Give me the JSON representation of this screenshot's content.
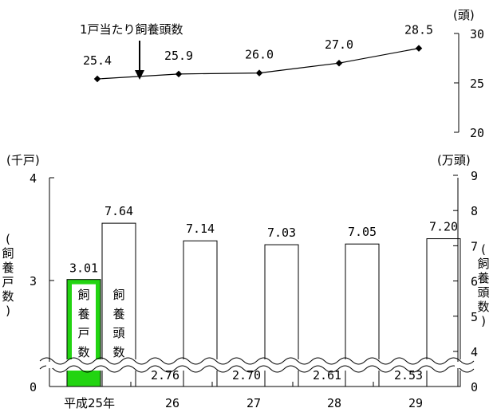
{
  "chart_data": [
    {
      "type": "line",
      "series": [
        {
          "name": "1戸当たり飼養頭数",
          "values": [
            25.4,
            25.9,
            26.0,
            27.0,
            28.5
          ]
        }
      ],
      "x": [
        "平成25年",
        "26",
        "27",
        "28",
        "29"
      ],
      "value_labels": [
        "25.4",
        "25.9",
        "26.0",
        "27.0",
        "28.5"
      ],
      "ylim": [
        20,
        30
      ],
      "yticks": [
        "20",
        "25",
        "30"
      ],
      "y_unit": "(頭)",
      "annotation": "1戸当たり飼養頭数"
    },
    {
      "type": "bar",
      "categories": [
        "平成25年",
        "26",
        "27",
        "28",
        "29"
      ],
      "series": [
        {
          "name": "飼養戸数",
          "values": [
            3.01,
            2.76,
            2.7,
            2.61,
            2.53
          ],
          "labels": [
            "3.01",
            "2.76",
            "2.70",
            "2.61",
            "2.53"
          ],
          "color": "#22d411"
        },
        {
          "name": "飼養頭数",
          "values": [
            7.64,
            7.14,
            7.03,
            7.05,
            7.2
          ],
          "labels": [
            "7.64",
            "7.14",
            "7.03",
            "7.05",
            "7.20"
          ],
          "color": "#ffffff"
        }
      ],
      "left_axis": {
        "unit": "(千戸)",
        "label": "(飼養戸数)",
        "ticks": [
          "0",
          "3",
          "4"
        ]
      },
      "right_axis": {
        "unit": "(万頭)",
        "label": "(飼養頭数)",
        "ticks": [
          "0",
          "4",
          "5",
          "6",
          "7",
          "8",
          "9"
        ]
      },
      "axis_break": true
    }
  ]
}
